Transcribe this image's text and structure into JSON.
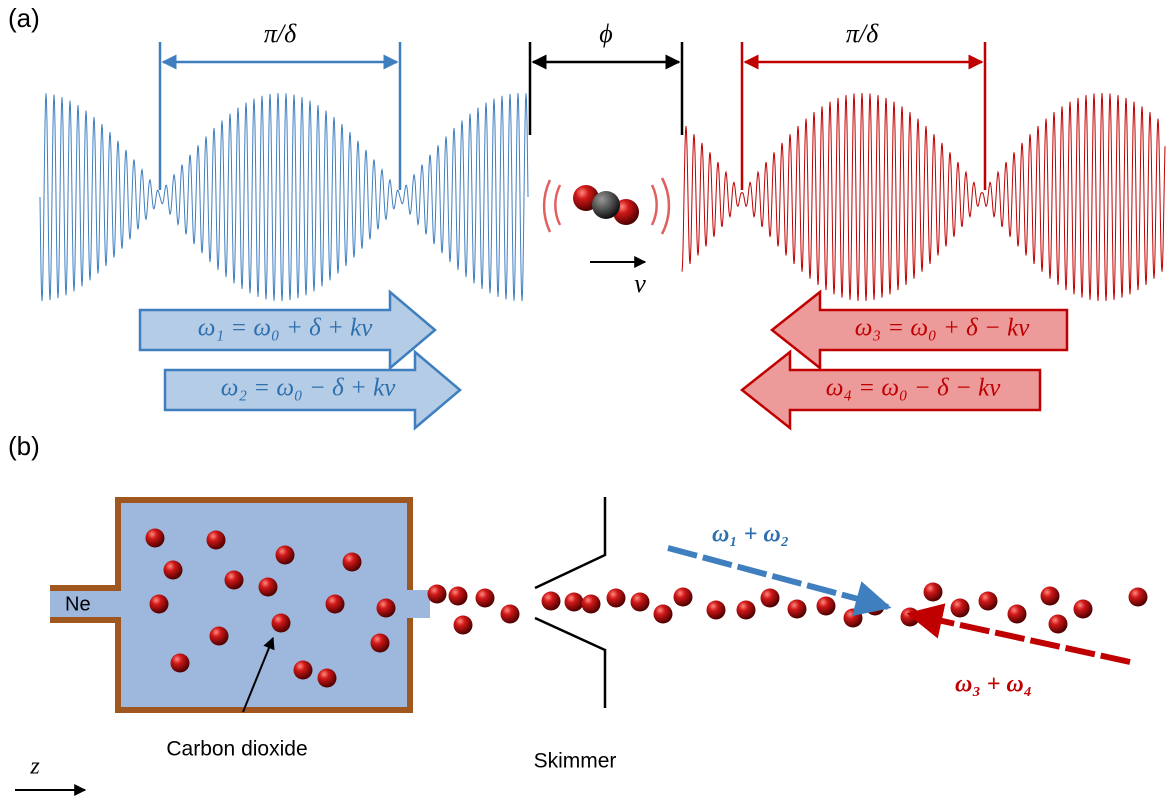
{
  "panel_a": {
    "label": "(a)",
    "beat_period_left": "π/δ",
    "phase": "ϕ",
    "beat_period_right": "π/δ",
    "velocity": "v",
    "beams": [
      "ω₁ = ω₀ + δ + kv",
      "ω₂ = ω₀ − δ + kv",
      "ω₃ = ω₀ + δ − kv",
      "ω₄ = ω₀ − δ − kv"
    ]
  },
  "panel_b": {
    "label": "(b)",
    "gas": "Ne",
    "sample": "Carbon dioxide",
    "skimmer": "Skimmer",
    "beam_forward": "ω₁ + ω₂",
    "beam_backward": "ω₃ + ω₄",
    "axis": "z"
  }
}
